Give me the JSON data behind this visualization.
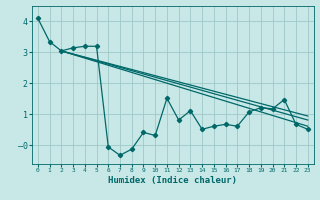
{
  "xlabel": "Humidex (Indice chaleur)",
  "bg_color": "#c8e8e8",
  "grid_color": "#a0c8c8",
  "line_color": "#006868",
  "xlim": [
    -0.5,
    23.5
  ],
  "ylim": [
    -0.6,
    4.5
  ],
  "xticks": [
    0,
    1,
    2,
    3,
    4,
    5,
    6,
    7,
    8,
    9,
    10,
    11,
    12,
    13,
    14,
    15,
    16,
    17,
    18,
    19,
    20,
    21,
    22,
    23
  ],
  "yticks": [
    0,
    1,
    2,
    3,
    4
  ],
  "main_x": [
    0,
    1,
    2,
    3,
    4,
    5,
    6,
    7,
    8,
    9,
    10,
    11,
    12,
    13,
    14,
    15,
    16,
    17,
    18,
    19,
    20,
    21,
    22,
    23
  ],
  "main_y": [
    4.1,
    3.35,
    3.05,
    3.15,
    3.2,
    3.2,
    -0.05,
    -0.32,
    -0.12,
    0.42,
    0.32,
    1.52,
    0.82,
    1.12,
    0.52,
    0.62,
    0.68,
    0.62,
    1.08,
    1.22,
    1.18,
    1.48,
    0.68,
    0.52
  ],
  "trend1_x": [
    2,
    23
  ],
  "trend1_y": [
    3.05,
    0.95
  ],
  "trend2_x": [
    2,
    23
  ],
  "trend2_y": [
    3.05,
    0.82
  ],
  "trend3_x": [
    2,
    23
  ],
  "trend3_y": [
    3.05,
    0.62
  ]
}
